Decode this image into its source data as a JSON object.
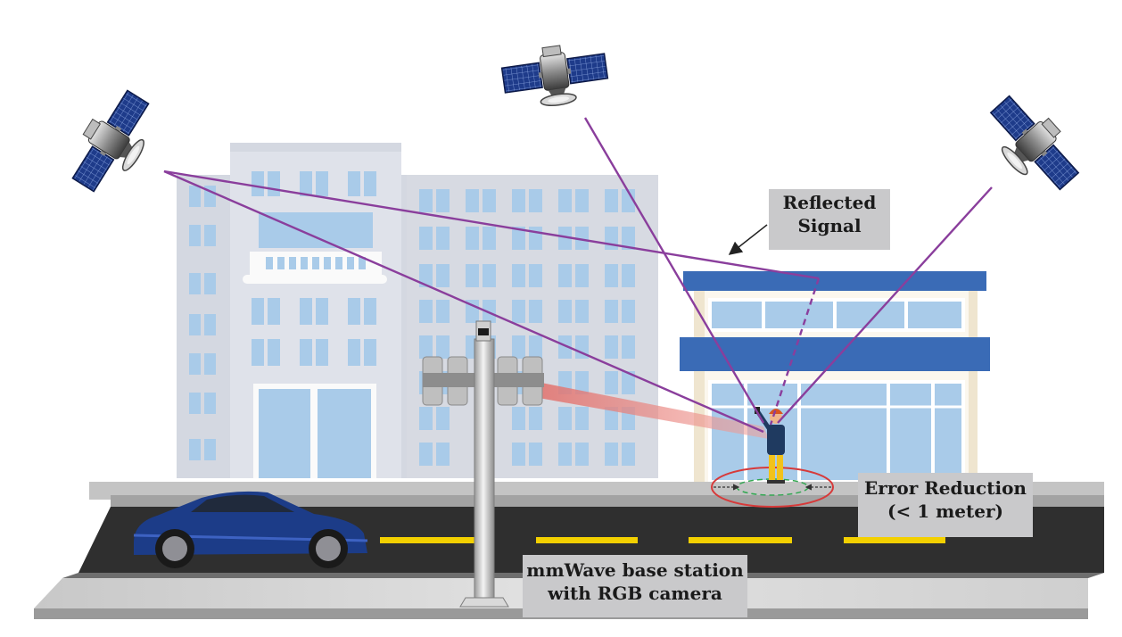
{
  "labels": {
    "reflected_line1": "Reflected",
    "reflected_line2": "Signal",
    "error_line1": "Error Reduction",
    "error_line2": "(< 1 meter)",
    "bs_line1": "mmWave base station",
    "bs_line2": "with RGB camera"
  },
  "colors": {
    "signal": "#8a3e9c",
    "building_shop_blue": "#3a6bb6",
    "window_blue": "#a9cbe9",
    "error_ellipse": "#d73a3a",
    "beam": "#e8807a",
    "road": "#2f2f2f",
    "lane_mark": "#f3d000",
    "car": "#1c3c88"
  },
  "icons": [
    "satellite-icon",
    "person-icon",
    "car-icon",
    "base-station-icon",
    "camera-icon"
  ]
}
